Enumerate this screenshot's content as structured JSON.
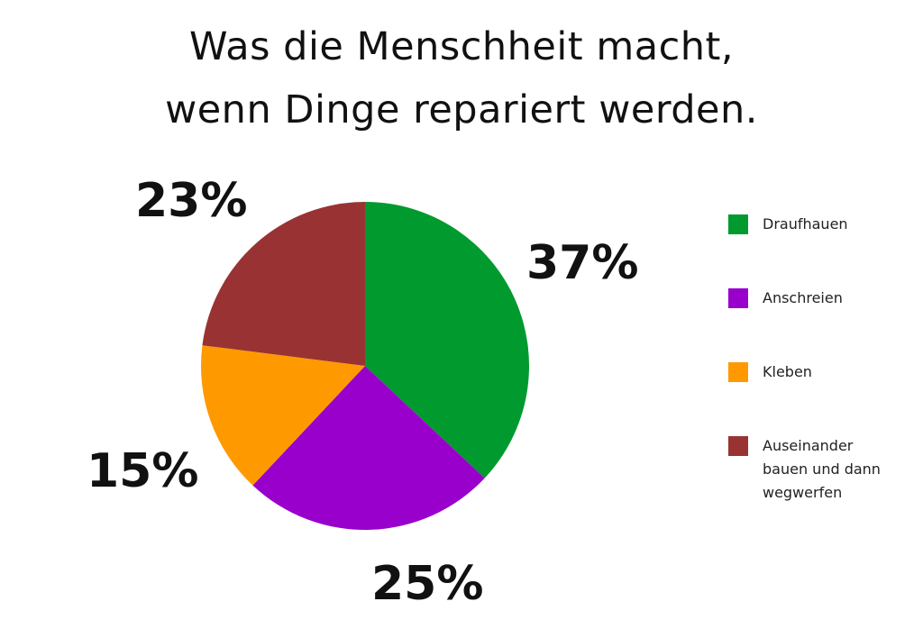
{
  "chart_data": {
    "type": "pie",
    "title": "Was die Menschheit macht, wenn Dinge repariert werden.",
    "title_lines": [
      "Was die Menschheit macht,",
      "wenn Dinge repariert werden."
    ],
    "slices": [
      {
        "name": "Draufhauen",
        "value": 37,
        "label": "37%",
        "color": "#009a2e"
      },
      {
        "name": "Anschreien",
        "value": 25,
        "label": "25%",
        "color": "#9900cc"
      },
      {
        "name": "Kleben",
        "value": 15,
        "label": "15%",
        "color": "#ff9900"
      },
      {
        "name": "Auseinander bauen und dann wegwerfen",
        "value": 23,
        "label": "23%",
        "color": "#993333"
      }
    ],
    "start": "12 o'clock",
    "direction": "clockwise",
    "legend": {
      "position": "right",
      "items": [
        {
          "label_lines": [
            "Draufhauen"
          ],
          "color": "#009a2e"
        },
        {
          "label_lines": [
            "Anschreien"
          ],
          "color": "#9900cc"
        },
        {
          "label_lines": [
            "Kleben"
          ],
          "color": "#ff9900"
        },
        {
          "label_lines": [
            "Auseinander",
            "bauen und dann",
            "wegwerfen"
          ],
          "color": "#993333"
        }
      ]
    }
  }
}
